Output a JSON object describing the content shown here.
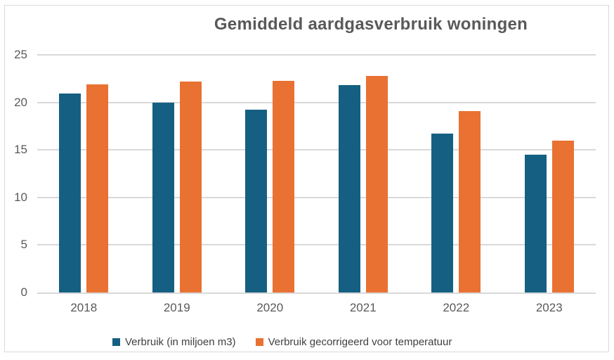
{
  "chart_data": {
    "type": "bar",
    "title": "Gemiddeld aardgasverbruik woningen",
    "categories": [
      "2018",
      "2019",
      "2020",
      "2021",
      "2022",
      "2023"
    ],
    "series": [
      {
        "name": "Verbruik (in miljoen m3)",
        "color": "#156082",
        "values": [
          20.9,
          20.0,
          19.2,
          21.8,
          16.7,
          14.5
        ]
      },
      {
        "name": "Verbruik gecorrigeerd voor temperatuur",
        "color": "#E97132",
        "values": [
          21.9,
          22.2,
          22.3,
          22.8,
          19.1,
          16.0
        ]
      }
    ],
    "xlabel": "",
    "ylabel": "",
    "ylim": [
      0,
      25
    ],
    "yticks": [
      0,
      5,
      10,
      15,
      20,
      25
    ],
    "grid": true,
    "legend_position": "bottom",
    "text_color": "#595959",
    "grid_color": "#D9D9D9",
    "border_color": "#D9D9D9",
    "legend_text_color": "#404040",
    "background_color": "#FFFFFF"
  }
}
